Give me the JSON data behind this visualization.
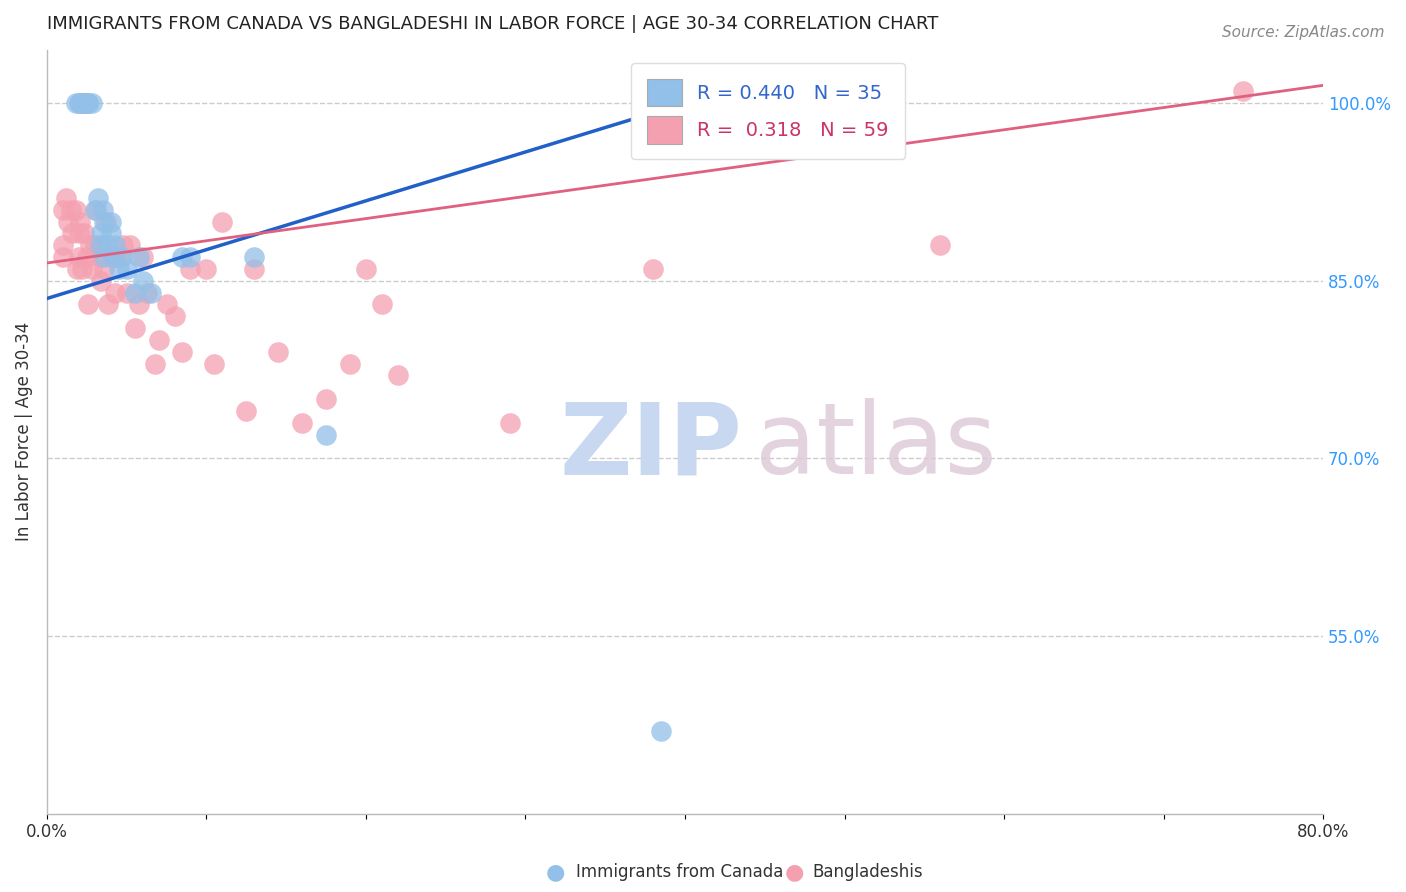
{
  "title": "IMMIGRANTS FROM CANADA VS BANGLADESHI IN LABOR FORCE | AGE 30-34 CORRELATION CHART",
  "source": "Source: ZipAtlas.com",
  "ylabel": "In Labor Force | Age 30-34",
  "xlim": [
    0.0,
    0.8
  ],
  "ylim": [
    0.4,
    1.045
  ],
  "xticks": [
    0.0,
    0.1,
    0.2,
    0.3,
    0.4,
    0.5,
    0.6,
    0.7,
    0.8
  ],
  "xticklabels": [
    "0.0%",
    "",
    "",
    "",
    "",
    "",
    "",
    "",
    "80.0%"
  ],
  "yticks_right": [
    0.55,
    0.7,
    0.85,
    1.0
  ],
  "yticklabels_right": [
    "55.0%",
    "70.0%",
    "85.0%",
    "100.0%"
  ],
  "canada_R": 0.44,
  "canada_N": 35,
  "bangla_R": 0.318,
  "bangla_N": 59,
  "canada_color": "#92c0e8",
  "bangla_color": "#f4a0b0",
  "canada_line_color": "#2060c8",
  "bangla_line_color": "#e06080",
  "legend_label_canada": "Immigrants from Canada",
  "legend_label_bangla": "Bangladeshis",
  "canada_line_x0": 0.0,
  "canada_line_y0": 0.835,
  "canada_line_x1": 0.4,
  "canada_line_y1": 1.0,
  "bangla_line_x0": 0.0,
  "bangla_line_y0": 0.865,
  "bangla_line_x1": 0.8,
  "bangla_line_y1": 1.015,
  "canada_x": [
    0.018,
    0.02,
    0.021,
    0.022,
    0.022,
    0.024,
    0.024,
    0.025,
    0.026,
    0.026,
    0.028,
    0.03,
    0.032,
    0.033,
    0.034,
    0.035,
    0.036,
    0.036,
    0.038,
    0.04,
    0.04,
    0.042,
    0.043,
    0.045,
    0.047,
    0.05,
    0.055,
    0.058,
    0.06,
    0.065,
    0.085,
    0.09,
    0.13,
    0.175,
    0.385
  ],
  "canada_y": [
    1.0,
    1.0,
    1.0,
    1.0,
    1.0,
    1.0,
    1.0,
    1.0,
    1.0,
    1.0,
    1.0,
    0.91,
    0.92,
    0.88,
    0.89,
    0.91,
    0.9,
    0.87,
    0.88,
    0.89,
    0.9,
    0.87,
    0.88,
    0.86,
    0.87,
    0.86,
    0.84,
    0.87,
    0.85,
    0.84,
    0.87,
    0.87,
    0.87,
    0.72,
    0.47
  ],
  "bangla_x": [
    0.01,
    0.01,
    0.01,
    0.012,
    0.013,
    0.015,
    0.016,
    0.018,
    0.019,
    0.02,
    0.02,
    0.021,
    0.022,
    0.023,
    0.025,
    0.026,
    0.027,
    0.028,
    0.03,
    0.031,
    0.033,
    0.034,
    0.035,
    0.036,
    0.037,
    0.038,
    0.04,
    0.042,
    0.043,
    0.045,
    0.048,
    0.05,
    0.052,
    0.055,
    0.058,
    0.06,
    0.063,
    0.068,
    0.07,
    0.075,
    0.08,
    0.085,
    0.09,
    0.1,
    0.105,
    0.11,
    0.125,
    0.13,
    0.145,
    0.16,
    0.175,
    0.19,
    0.2,
    0.21,
    0.22,
    0.29,
    0.38,
    0.56,
    0.75
  ],
  "bangla_y": [
    0.91,
    0.88,
    0.87,
    0.92,
    0.9,
    0.91,
    0.89,
    0.91,
    0.86,
    0.89,
    0.87,
    0.9,
    0.86,
    0.89,
    0.87,
    0.83,
    0.88,
    0.86,
    0.88,
    0.91,
    0.87,
    0.85,
    0.88,
    0.86,
    0.9,
    0.83,
    0.87,
    0.87,
    0.84,
    0.87,
    0.88,
    0.84,
    0.88,
    0.81,
    0.83,
    0.87,
    0.84,
    0.78,
    0.8,
    0.83,
    0.82,
    0.79,
    0.86,
    0.86,
    0.78,
    0.9,
    0.74,
    0.86,
    0.79,
    0.73,
    0.75,
    0.78,
    0.86,
    0.83,
    0.77,
    0.73,
    0.86,
    0.88,
    1.01
  ]
}
